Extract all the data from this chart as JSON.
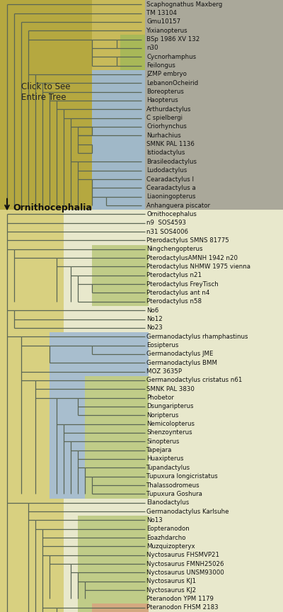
{
  "taxa": [
    "Scaphognathus Maxberg",
    "TM 13104",
    "Gmu10157",
    "Yixianopterus",
    "BSp 1986 XV 132",
    "n30",
    "Cycnorhamphus",
    "Feilongus",
    "JZMP embryo",
    "LebanonOcheirid",
    "Boreopterus",
    "Haopterus",
    "Arthurdactylus",
    "C spielbergi",
    "Criorhynchus",
    "Nurhachius",
    "SMNK PAL 1136",
    "Istiodactylus",
    "Brasileodactylus",
    "Ludodactylus",
    "Cearadactylus I",
    "Cearadactylus a",
    "Liaoningopterus",
    "Anhanguera piscator",
    "Ornithocephalus",
    "n9  SOS4593",
    "n31 SOS4006",
    "Pterodactylus SMNS 81775",
    "Ningchengopterus",
    "PterodactylusAMNH 1942 n20",
    "Pterodactylus NHMW 1975 vienna",
    "Pterodactylus n21",
    "Pterodactylus FreyTisch",
    "Pterodactylus ant n4",
    "Pterodactylus n58",
    "No6",
    "No12",
    "No23",
    "Germanodactylus rhamphastinus",
    "Eosipterus",
    "Germanodactylus JME",
    "Germanodactylus BMM",
    "MOZ 3635P",
    "Germanodactylus cristatus n61",
    "SMNK PAL 3830",
    "Phobetor",
    "Dsungaripterus",
    "Noripterus",
    "Nemicolopterus",
    "Shenzoупterus",
    "Sinopterus",
    "Tapejara",
    "Huaxipterus",
    "Tupandactylus",
    "Tupuxura longicristatus",
    "Thalassodromeus",
    "Tupuxura Goshura",
    "Elanodactylus",
    "Germanodactylus Karlsuhe",
    "No13",
    "Eopteranodon",
    "Eoazhdarcho",
    "Muzquizopteryx",
    "Nyctosaurus FHSMVP21",
    "Nyctosaurus FMNH25026",
    "Nyctosaurus UNSM93000",
    "Nyctosaurus KJ1",
    "Nyctosaurus KJ2",
    "Pteranodon YPM 1179",
    "Pteranodon FHSM 2183"
  ],
  "click_text": "Click to See\nEntire Tree",
  "ornith_text": "Ornithocephalia"
}
